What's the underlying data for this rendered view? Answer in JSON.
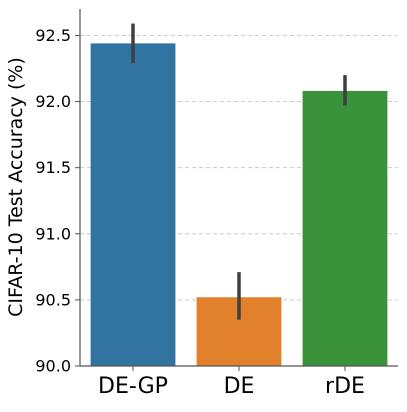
{
  "chart_data": {
    "type": "bar",
    "categories": [
      "DE-GP",
      "DE",
      "rDE"
    ],
    "values": [
      92.44,
      90.52,
      92.08
    ],
    "error_low": [
      92.29,
      90.35,
      91.97
    ],
    "error_high": [
      92.59,
      90.71,
      92.2
    ],
    "title": "",
    "xlabel": "",
    "ylabel": "CIFAR-10 Test Accuracy (%)",
    "ylim": [
      90.0,
      92.7
    ],
    "yticks": [
      90.0,
      90.5,
      91.0,
      91.5,
      92.0,
      92.5
    ],
    "ytick_labels": [
      "90.0",
      "90.5",
      "91.0",
      "91.5",
      "92.0",
      "92.5"
    ],
    "grid": "horizontal dashed",
    "colors": [
      "#3274a1",
      "#e1812c",
      "#3a923a"
    ],
    "error_bar_color": "#3f3f3f",
    "grid_color": "#cccccc",
    "axis_color": "#555555"
  }
}
